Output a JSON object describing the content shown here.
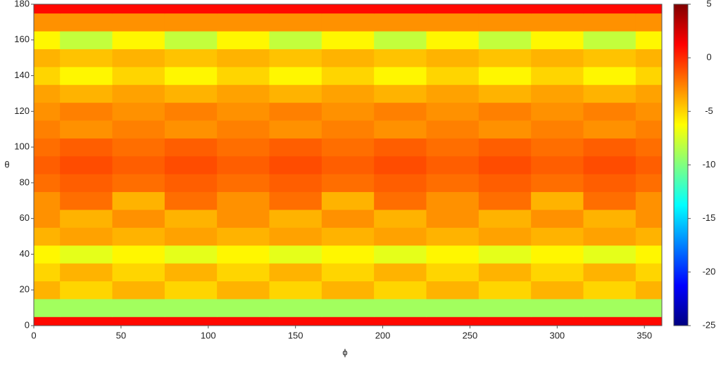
{
  "chart_data": {
    "type": "heatmap",
    "xlabel": "ϕ",
    "ylabel": "θ",
    "x": [
      0,
      30,
      60,
      90,
      120,
      150,
      180,
      210,
      240,
      270,
      300,
      330,
      360
    ],
    "y": [
      0,
      10,
      20,
      30,
      40,
      50,
      60,
      70,
      80,
      90,
      100,
      110,
      120,
      130,
      140,
      150,
      160,
      170,
      180
    ],
    "z": [
      [
        1,
        1,
        1,
        1,
        1,
        1,
        1,
        1,
        1,
        1,
        1,
        1,
        1
      ],
      [
        -9,
        -9,
        -9,
        -9,
        -9,
        -9,
        -9,
        -9,
        -9,
        -9,
        -9,
        -9,
        -9
      ],
      [
        -4,
        -5,
        -4,
        -5,
        -4,
        -5,
        -4,
        -5,
        -4,
        -5,
        -4,
        -5,
        -4
      ],
      [
        -5,
        -4,
        -5,
        -4,
        -5,
        -4,
        -5,
        -4,
        -5,
        -4,
        -5,
        -4,
        -5
      ],
      [
        -6,
        -7,
        -6,
        -7,
        -6,
        -7,
        -6,
        -7,
        -6,
        -7,
        -6,
        -7,
        -6
      ],
      [
        -4,
        -3.5,
        -4,
        -3.5,
        -4,
        -3.5,
        -4,
        -3.5,
        -4,
        -3.5,
        -4,
        -3.5,
        -4
      ],
      [
        -3,
        -4,
        -3,
        -4,
        -3,
        -4,
        -3,
        -4,
        -3,
        -4,
        -3,
        -4,
        -3
      ],
      [
        -3,
        -2,
        -4,
        -2,
        -3,
        -2,
        -4,
        -2,
        -3,
        -2,
        -4,
        -2,
        -3
      ],
      [
        -2,
        -1.5,
        -2,
        -1.5,
        -2,
        -1.5,
        -2,
        -1.5,
        -2,
        -1.5,
        -2,
        -1.5,
        -2
      ],
      [
        -1.5,
        -1,
        -1.5,
        -1,
        -1.5,
        -1,
        -1.5,
        -1,
        -1.5,
        -1,
        -1.5,
        -1,
        -1.5
      ],
      [
        -2,
        -1.5,
        -2,
        -1.5,
        -2,
        -1.5,
        -2,
        -1.5,
        -2,
        -1.5,
        -2,
        -1.5,
        -2
      ],
      [
        -2.5,
        -3,
        -2.5,
        -3,
        -2.5,
        -3,
        -2.5,
        -3,
        -2.5,
        -3,
        -2.5,
        -3,
        -2.5
      ],
      [
        -3,
        -2.5,
        -3,
        -2.5,
        -3,
        -2.5,
        -3,
        -2.5,
        -3,
        -2.5,
        -3,
        -2.5,
        -3
      ],
      [
        -3.5,
        -4,
        -3.5,
        -4,
        -3.5,
        -4,
        -3.5,
        -4,
        -3.5,
        -4,
        -3.5,
        -4,
        -3.5
      ],
      [
        -5,
        -6,
        -5,
        -6,
        -5,
        -6,
        -5,
        -6,
        -5,
        -6,
        -5,
        -6,
        -5
      ],
      [
        -4,
        -4.5,
        -4,
        -4.5,
        -4,
        -4.5,
        -4,
        -4.5,
        -4,
        -4.5,
        -4,
        -4.5,
        -4
      ],
      [
        -6,
        -8,
        -6,
        -8,
        -6,
        -8,
        -6,
        -8,
        -6,
        -8,
        -6,
        -8,
        -6
      ],
      [
        -3,
        -3,
        -3,
        -3,
        -3,
        -3,
        -3,
        -3,
        -3,
        -3,
        -3,
        -3,
        -3
      ],
      [
        1,
        1,
        1,
        1,
        1,
        1,
        1,
        1,
        1,
        1,
        1,
        1,
        1
      ]
    ],
    "xlim": [
      0,
      360
    ],
    "xticks": [
      0,
      50,
      100,
      150,
      200,
      250,
      300,
      350
    ],
    "ylim": [
      0,
      180
    ],
    "yticks": [
      0,
      20,
      40,
      60,
      80,
      100,
      120,
      140,
      160,
      180
    ],
    "zlim": [
      -25,
      5
    ],
    "zticks": [
      5,
      0,
      -5,
      -10,
      -15,
      -20,
      -25
    ],
    "colormap": "jet"
  }
}
